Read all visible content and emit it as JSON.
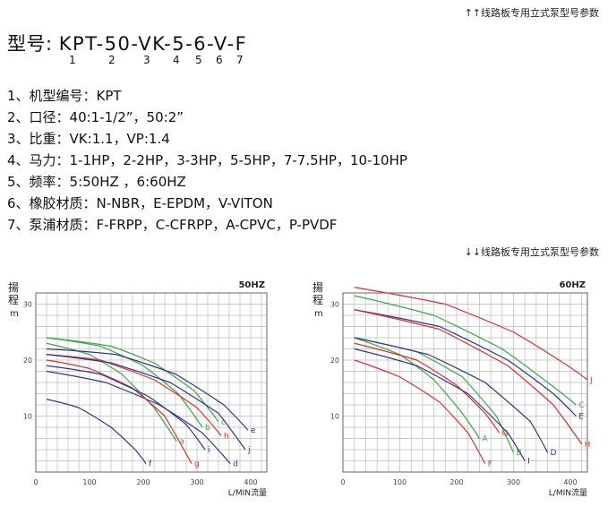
{
  "notes": {
    "top": "↑↑线路板专用立式泵型号参数",
    "bottom": "↓↓线路板专用立式泵型号参数"
  },
  "model": {
    "prefix": "型号:",
    "code": "KPT-50-VK-5-6-V-F",
    "indices": [
      "1",
      "2",
      "3",
      "4",
      "5",
      "6",
      "7"
    ]
  },
  "specs": [
    "1、机型编号：KPT",
    "2、口径：40:1-1/2”，50:2”",
    "3、比重：VK:1.1，VP:1.4",
    "4、马力：1-1HP，2-2HP，3-3HP，5-5HP，7-7.5HP，10-10HP",
    "5、频率：5:50HZ ，6:60HZ",
    "6、橡胶材质：N-NBR，E-EPDM，V-VITON",
    "7、泵浦材质：F-FRPP，C-CFRPP，A-CPVC，P-PVDF"
  ],
  "chart_data": [
    {
      "type": "line",
      "title": "50HZ",
      "ylabel": "揚程 m",
      "xlabel": "L/MIN流量",
      "xlim": [
        0,
        430
      ],
      "ylim": [
        0,
        32
      ],
      "xticks": [
        0,
        100,
        200,
        300,
        400
      ],
      "yticks": [
        10,
        20,
        30
      ],
      "series": [
        {
          "name": "a",
          "color": "#3aa845",
          "x": [
            20,
            100,
            160,
            220,
            262
          ],
          "y": [
            23,
            21,
            17.5,
            11.5,
            5.5
          ]
        },
        {
          "name": "b",
          "color": "#3aa845",
          "x": [
            20,
            120,
            200,
            265,
            310
          ],
          "y": [
            24,
            22.5,
            19,
            14,
            8
          ]
        },
        {
          "name": "c",
          "color": "#3aa845",
          "x": [
            20,
            140,
            220,
            295,
            340
          ],
          "y": [
            24,
            22.5,
            19.5,
            14.5,
            9
          ]
        },
        {
          "name": "d",
          "color": "#33338a",
          "x": [
            20,
            130,
            230,
            310,
            362
          ],
          "y": [
            18,
            16,
            12,
            7,
            1.5
          ]
        },
        {
          "name": "e",
          "color": "#33338a",
          "x": [
            20,
            150,
            260,
            350,
            395
          ],
          "y": [
            22,
            21,
            17.5,
            12,
            7.5
          ]
        },
        {
          "name": "f",
          "color": "#33338a",
          "x": [
            20,
            80,
            140,
            185,
            205
          ],
          "y": [
            13,
            11.5,
            8,
            4,
            1.5
          ]
        },
        {
          "name": "g",
          "color": "#d9302c",
          "x": [
            20,
            100,
            180,
            240,
            290
          ],
          "y": [
            20,
            18.5,
            15,
            10,
            1.5
          ]
        },
        {
          "name": "h",
          "color": "#d9302c",
          "x": [
            20,
            120,
            220,
            300,
            345
          ],
          "y": [
            21,
            20,
            16.5,
            11.5,
            6.5
          ]
        },
        {
          "name": "i",
          "color": "#33338a",
          "x": [
            20,
            120,
            210,
            280,
            315
          ],
          "y": [
            19,
            17.5,
            13.5,
            8.5,
            4
          ]
        },
        {
          "name": "j",
          "color": "#33338a",
          "x": [
            20,
            140,
            250,
            340,
            390
          ],
          "y": [
            21,
            19.5,
            16,
            10.5,
            4
          ]
        }
      ]
    },
    {
      "type": "line",
      "title": "60HZ",
      "ylabel": "揚程 m",
      "xlabel": "L/MIN流量",
      "xlim": [
        0,
        430
      ],
      "ylim": [
        0,
        32
      ],
      "xticks": [
        0,
        100,
        200,
        300,
        400
      ],
      "yticks": [
        10,
        20,
        30
      ],
      "series": [
        {
          "name": "A",
          "color": "#3aa845",
          "x": [
            20,
            100,
            160,
            210,
            240
          ],
          "y": [
            24,
            21,
            16.5,
            10.5,
            6
          ]
        },
        {
          "name": "B",
          "color": "#3aa845",
          "x": [
            20,
            130,
            210,
            270,
            300
          ],
          "y": [
            24,
            21.5,
            17,
            10,
            3.5
          ]
        },
        {
          "name": "C",
          "color": "#3aa845",
          "x": [
            20,
            160,
            280,
            360,
            410
          ],
          "y": [
            31.5,
            28,
            22,
            16,
            12
          ]
        },
        {
          "name": "D",
          "color": "#33338a",
          "x": [
            20,
            150,
            250,
            330,
            360
          ],
          "y": [
            24,
            21,
            16,
            9,
            3.5
          ]
        },
        {
          "name": "E",
          "color": "#33338a",
          "x": [
            20,
            170,
            290,
            370,
            410
          ],
          "y": [
            29,
            26,
            20,
            14,
            10
          ]
        },
        {
          "name": "F",
          "color": "#d9302c",
          "x": [
            20,
            100,
            170,
            220,
            250
          ],
          "y": [
            20,
            17,
            12.5,
            7,
            1.5
          ]
        },
        {
          "name": "G",
          "color": "#d9302c",
          "x": [
            20,
            130,
            200,
            250,
            275
          ],
          "y": [
            23,
            20,
            15.5,
            10.5,
            7
          ]
        },
        {
          "name": "H",
          "color": "#d9302c",
          "x": [
            20,
            170,
            290,
            370,
            420
          ],
          "y": [
            29,
            25.5,
            19,
            12,
            5
          ]
        },
        {
          "name": "I",
          "color": "#33338a",
          "x": [
            20,
            130,
            220,
            290,
            320
          ],
          "y": [
            22,
            19,
            14,
            7,
            2
          ]
        },
        {
          "name": "J",
          "color": "#d9302c",
          "x": [
            20,
            180,
            300,
            380,
            430
          ],
          "y": [
            33,
            30,
            25,
            20,
            16.5
          ]
        }
      ]
    }
  ]
}
